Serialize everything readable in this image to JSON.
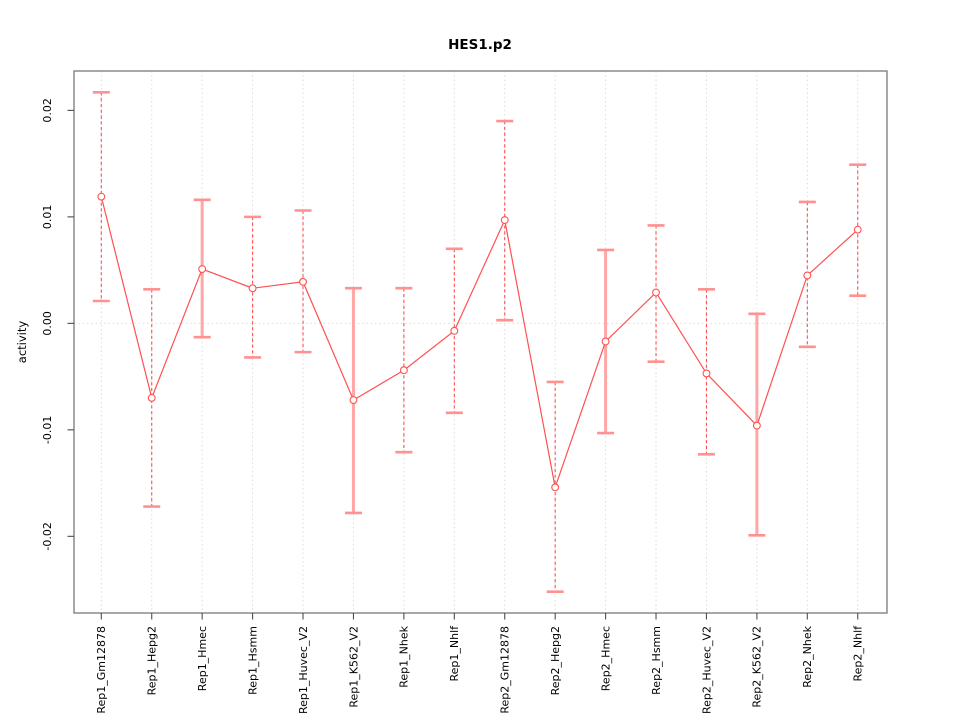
{
  "title": "HES1.p2",
  "y_axis_label": "activity",
  "colors": {
    "line": "#ff5050",
    "marker_fill": "#ffffff",
    "cap": "#ff9191",
    "solid_stem": "#ffa6a6",
    "box": "#828282",
    "tick": "#4d4d4d",
    "grid": "#dcdcdc",
    "text": "#000000",
    "background": "#ffffff"
  },
  "chart_data": {
    "type": "line",
    "title": "HES1.p2",
    "xlabel": "",
    "ylabel": "activity",
    "ylim": [
      -0.0272,
      0.0237
    ],
    "ytick_values": [
      -0.02,
      -0.01,
      0,
      0.01,
      0.02
    ],
    "ytick_labels": [
      "-0.02",
      "-0.01",
      "0.00",
      "0.01",
      "0.02"
    ],
    "grid": "dotted vertical line at each category; dotted horizontal line at y=0; no legend",
    "legend": "none",
    "marker": "open-circle",
    "x_label_rotation": -90,
    "categories": [
      "Rep1_Gm12878",
      "Rep1_Hepg2",
      "Rep1_Hmec",
      "Rep1_Hsmm",
      "Rep1_Huvec_V2",
      "Rep1_K562_V2",
      "Rep1_Nhek",
      "Rep1_Nhlf",
      "Rep2_Gm12878",
      "Rep2_Hepg2",
      "Rep2_Hmec",
      "Rep2_Hsmm",
      "Rep2_Huvec_V2",
      "Rep2_K562_V2",
      "Rep2_Nhek",
      "Rep2_Nhlf"
    ],
    "series": [
      {
        "name": "activity",
        "values": [
          0.0119,
          -0.007,
          0.0051,
          0.0033,
          0.0039,
          -0.0072,
          -0.0044,
          -0.0007,
          0.0097,
          -0.0154,
          -0.0017,
          0.0029,
          -0.0047,
          -0.0096,
          0.0045,
          0.0088
        ],
        "ci_low": [
          0.0021,
          -0.0172,
          -0.0013,
          -0.0032,
          -0.0027,
          -0.0178,
          -0.0121,
          -0.0084,
          0.0003,
          -0.0252,
          -0.0103,
          -0.0036,
          -0.0123,
          -0.0199,
          -0.0022,
          0.0026
        ],
        "ci_high": [
          0.0217,
          0.0032,
          0.0116,
          0.01,
          0.0106,
          0.0033,
          0.0033,
          0.007,
          0.019,
          -0.0055,
          0.0069,
          0.0092,
          0.0032,
          0.0009,
          0.0114,
          0.0149
        ]
      }
    ],
    "solid_stem_indices": [
      2,
      5,
      10,
      13
    ]
  }
}
